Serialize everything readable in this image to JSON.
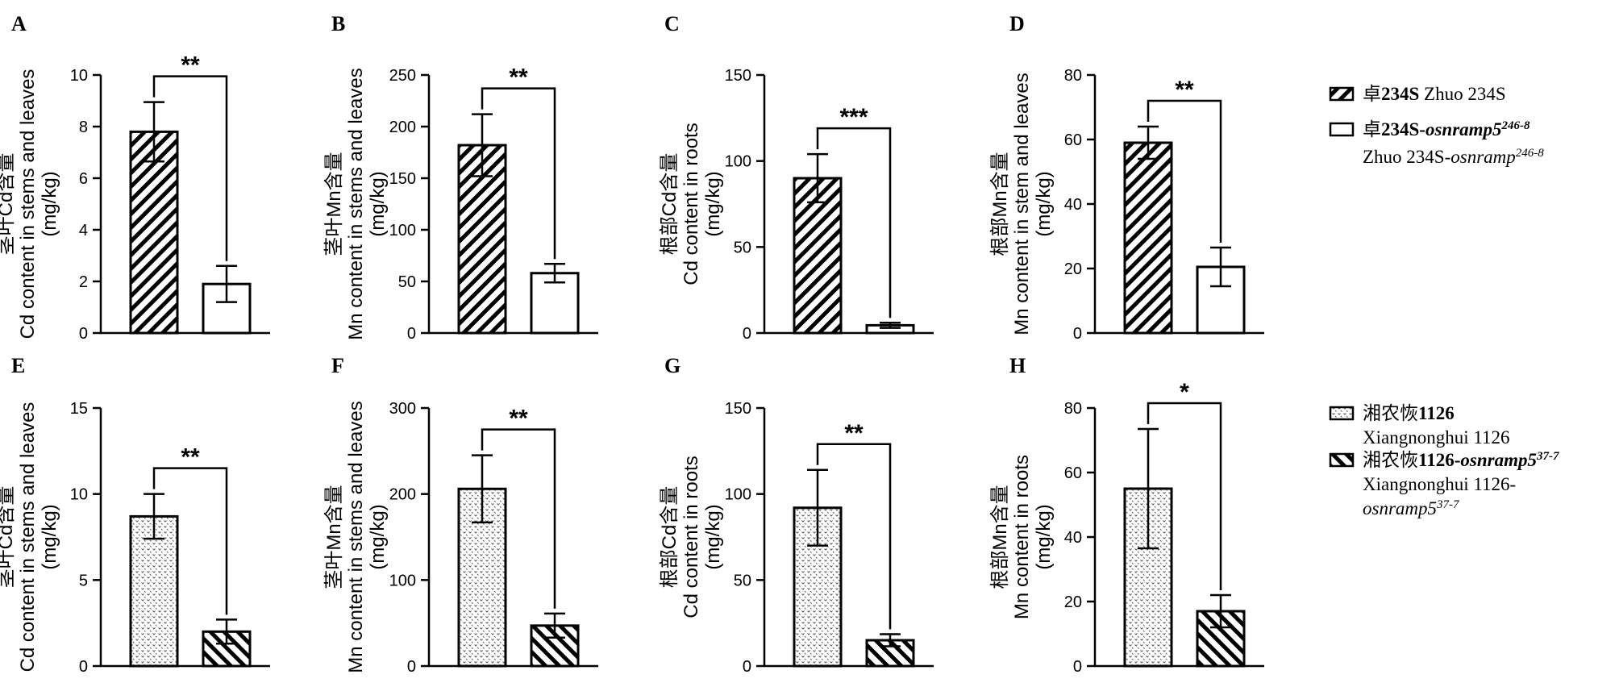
{
  "legend_top": {
    "items": [
      {
        "pattern": "hatch",
        "lines": [
          [
            {
              "t": "卓",
              "style": ""
            },
            {
              "t": "234S",
              "style": "b"
            },
            {
              "t": "  Zhuo 234S",
              "style": ""
            }
          ]
        ]
      },
      {
        "pattern": "plain",
        "lines": [
          [
            {
              "t": "卓",
              "style": ""
            },
            {
              "t": "234S-",
              "style": "b"
            },
            {
              "t": "osnramp5",
              "style": "bi"
            },
            {
              "t": "246-8",
              "style": "bisup"
            }
          ],
          [
            {
              "t": "Zhuo 234S-",
              "style": ""
            },
            {
              "t": "osnramp",
              "style": "i"
            },
            {
              "t": "246-8",
              "style": "isup"
            }
          ]
        ]
      }
    ]
  },
  "legend_bottom": {
    "items": [
      {
        "pattern": "dots",
        "lines": [
          [
            {
              "t": "湘农恢",
              "style": ""
            },
            {
              "t": "1126",
              "style": "b"
            }
          ],
          [
            {
              "t": "Xiangnonghui 1126",
              "style": ""
            }
          ]
        ]
      },
      {
        "pattern": "hatchneg",
        "lines": [
          [
            {
              "t": "湘农恢",
              "style": ""
            },
            {
              "t": "1126-",
              "style": "b"
            },
            {
              "t": "osnramp5",
              "style": "bi"
            },
            {
              "t": "37-7",
              "style": "bisup"
            }
          ],
          [
            {
              "t": "Xiangnonghui 1126-",
              "style": ""
            }
          ],
          [
            {
              "t": "osnramp5",
              "style": "i"
            },
            {
              "t": "37-7",
              "style": "isup"
            }
          ]
        ]
      }
    ]
  },
  "chart_data": [
    {
      "panel": "A",
      "type": "bar",
      "ylabel": [
        "茎叶Cd含量",
        "Cd content in stems and leaves",
        "(mg/kg)"
      ],
      "ylim": [
        0,
        10
      ],
      "yticks": [
        0,
        2,
        4,
        6,
        8,
        10
      ],
      "series": [
        {
          "values": [
            7.8,
            1.9
          ],
          "errors": [
            1.15,
            0.7
          ]
        }
      ],
      "patterns": [
        "hatch",
        "plain"
      ],
      "significance": "**"
    },
    {
      "panel": "B",
      "type": "bar",
      "ylabel": [
        "茎叶Mn含量",
        "Mn content in stems and leaves",
        "(mg/kg)"
      ],
      "ylim": [
        0,
        250
      ],
      "yticks": [
        0,
        50,
        100,
        150,
        200,
        250
      ],
      "series": [
        {
          "values": [
            182,
            58
          ],
          "errors": [
            30,
            9
          ]
        }
      ],
      "patterns": [
        "hatch",
        "plain"
      ],
      "significance": "**"
    },
    {
      "panel": "C",
      "type": "bar",
      "ylabel": [
        "根部Cd含量",
        "Cd content in roots",
        "(mg/kg)"
      ],
      "ylim": [
        0,
        150
      ],
      "yticks": [
        0,
        50,
        100,
        150
      ],
      "series": [
        {
          "values": [
            90,
            4.5
          ],
          "errors": [
            14,
            1.5
          ]
        }
      ],
      "patterns": [
        "hatch",
        "plain"
      ],
      "significance": "***"
    },
    {
      "panel": "D",
      "type": "bar",
      "ylabel": [
        "根部Mn含量",
        "Mn content in stem and leaves",
        "(mg/kg)"
      ],
      "ylim": [
        0,
        80
      ],
      "yticks": [
        0,
        20,
        40,
        60,
        80
      ],
      "series": [
        {
          "values": [
            59,
            20.5
          ],
          "errors": [
            5,
            6
          ]
        }
      ],
      "patterns": [
        "hatch",
        "plain"
      ],
      "significance": "**"
    },
    {
      "panel": "E",
      "type": "bar",
      "ylabel": [
        "茎叶Cd含量",
        "Cd content in stems and leaves",
        "(mg/kg)"
      ],
      "ylim": [
        0,
        15
      ],
      "yticks": [
        0,
        5,
        10,
        15
      ],
      "series": [
        {
          "values": [
            8.7,
            2.0
          ],
          "errors": [
            1.3,
            0.7
          ]
        }
      ],
      "patterns": [
        "dots",
        "hatchneg"
      ],
      "significance": "**"
    },
    {
      "panel": "F",
      "type": "bar",
      "ylabel": [
        "茎叶Mn含量",
        "Mn content in stems and leaves",
        "(mg/kg)"
      ],
      "ylim": [
        0,
        300
      ],
      "yticks": [
        0,
        100,
        200,
        300
      ],
      "series": [
        {
          "values": [
            206,
            47
          ],
          "errors": [
            39,
            14
          ]
        }
      ],
      "patterns": [
        "dots",
        "hatchneg"
      ],
      "significance": "**"
    },
    {
      "panel": "G",
      "type": "bar",
      "ylabel": [
        "根部Cd含量",
        "Cd content in roots",
        "(mg/kg)"
      ],
      "ylim": [
        0,
        150
      ],
      "yticks": [
        0,
        50,
        100,
        150
      ],
      "series": [
        {
          "values": [
            92,
            15
          ],
          "errors": [
            22,
            3.5
          ]
        }
      ],
      "patterns": [
        "dots",
        "hatchneg"
      ],
      "significance": "**"
    },
    {
      "panel": "H",
      "type": "bar",
      "ylabel": [
        "根部Mn含量",
        "Mn content in roots",
        "(mg/kg)"
      ],
      "ylim": [
        0,
        80
      ],
      "yticks": [
        0,
        20,
        40,
        60,
        80
      ],
      "series": [
        {
          "values": [
            55,
            17
          ],
          "errors": [
            18.5,
            5
          ]
        }
      ],
      "patterns": [
        "dots",
        "hatchneg"
      ],
      "significance": "*"
    }
  ]
}
